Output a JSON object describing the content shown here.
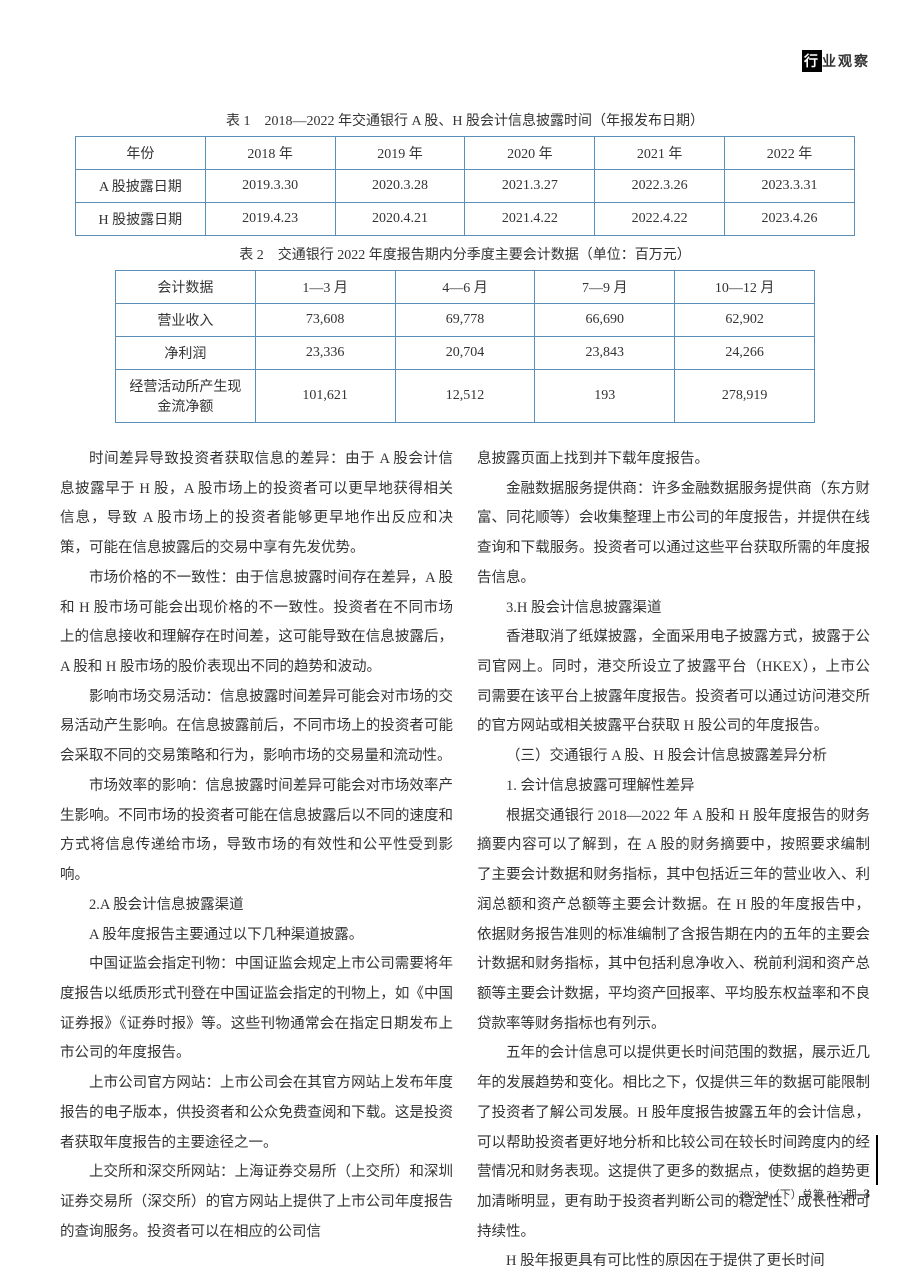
{
  "header": {
    "label_box": "行",
    "label_rest": "业观察"
  },
  "table1": {
    "caption": "表 1　2018—2022 年交通银行 A 股、H 股会计信息披露时间（年报发布日期）",
    "columns": [
      "年份",
      "2018 年",
      "2019 年",
      "2020 年",
      "2021 年",
      "2022 年"
    ],
    "rows": [
      [
        "A 股披露日期",
        "2019.3.30",
        "2020.3.28",
        "2021.3.27",
        "2022.3.26",
        "2023.3.31"
      ],
      [
        "H 股披露日期",
        "2019.4.23",
        "2020.4.21",
        "2021.4.22",
        "2022.4.22",
        "2023.4.26"
      ]
    ]
  },
  "table2": {
    "caption": "表 2　交通银行 2022 年度报告期内分季度主要会计数据（单位：百万元）",
    "columns": [
      "会计数据",
      "1—3 月",
      "4—6 月",
      "7—9 月",
      "10—12 月"
    ],
    "rows": [
      [
        "营业收入",
        "73,608",
        "69,778",
        "66,690",
        "62,902"
      ],
      [
        "净利润",
        "23,336",
        "20,704",
        "23,843",
        "24,266"
      ],
      [
        "经营活动所产生现金流净额",
        "101,621",
        "12,512",
        "193",
        "278,919"
      ]
    ]
  },
  "left": {
    "p1": "时间差异导致投资者获取信息的差异：由于 A 股会计信息披露早于 H 股，A 股市场上的投资者可以更早地获得相关信息，导致 A 股市场上的投资者能够更早地作出反应和决策，可能在信息披露后的交易中享有先发优势。",
    "p2": "市场价格的不一致性：由于信息披露时间存在差异，A 股和 H 股市场可能会出现价格的不一致性。投资者在不同市场上的信息接收和理解存在时间差，这可能导致在信息披露后，A 股和 H 股市场的股价表现出不同的趋势和波动。",
    "p3": "影响市场交易活动：信息披露时间差异可能会对市场的交易活动产生影响。在信息披露前后，不同市场上的投资者可能会采取不同的交易策略和行为，影响市场的交易量和流动性。",
    "p4": "市场效率的影响：信息披露时间差异可能会对市场效率产生影响。不同市场的投资者可能在信息披露后以不同的速度和方式将信息传递给市场，导致市场的有效性和公平性受到影响。",
    "p5": "2.A 股会计信息披露渠道",
    "p6": "A 股年度报告主要通过以下几种渠道披露。",
    "p7": "中国证监会指定刊物：中国证监会规定上市公司需要将年度报告以纸质形式刊登在中国证监会指定的刊物上，如《中国证券报》《证券时报》等。这些刊物通常会在指定日期发布上市公司的年度报告。",
    "p8": "上市公司官方网站：上市公司会在其官方网站上发布年度报告的电子版本，供投资者和公众免费查阅和下载。这是投资者获取年度报告的主要途径之一。",
    "p9": "上交所和深交所网站：上海证券交易所（上交所）和深圳证券交易所（深交所）的官方网站上提供了上市公司年度报告的查询服务。投资者可以在相应的公司信"
  },
  "right": {
    "p1": "息披露页面上找到并下载年度报告。",
    "p2": "金融数据服务提供商：许多金融数据服务提供商（东方财富、同花顺等）会收集整理上市公司的年度报告，并提供在线查询和下载服务。投资者可以通过这些平台获取所需的年度报告信息。",
    "p3": "3.H 股会计信息披露渠道",
    "p4": "香港取消了纸媒披露，全面采用电子披露方式，披露于公司官网上。同时，港交所设立了披露平台（HKEX），上市公司需要在该平台上披露年度报告。投资者可以通过访问港交所的官方网站或相关披露平台获取 H 股公司的年度报告。",
    "p5": "（三）交通银行 A 股、H 股会计信息披露差异分析",
    "p6": "1. 会计信息披露可理解性差异",
    "p7": "根据交通银行 2018—2022 年 A 股和 H 股年度报告的财务摘要内容可以了解到，在 A 股的财务摘要中，按照要求编制了主要会计数据和财务指标，其中包括近三年的营业收入、利润总额和资产总额等主要会计数据。在 H 股的年度报告中，依据财务报告准则的标准编制了含报告期在内的五年的主要会计数据和财务指标，其中包括利息净收入、税前利润和资产总额等主要会计数据，平均资产回报率、平均股东权益率和不良贷款率等财务指标也有列示。",
    "p8": "五年的会计信息可以提供更长时间范围的数据，展示近几年的发展趋势和变化。相比之下，仅提供三年的数据可能限制了投资者了解公司发展。H 股年度报告披露五年的会计信息，可以帮助投资者更好地分析和比较公司在较长时间跨度内的经营情况和财务表现。这提供了更多的数据点，使数据的趋势更加清晰明显，更有助于投资者判断公司的稳定性、成长性和可持续性。",
    "p9": "H 股年报更具有可比性的原因在于提供了更长时间"
  },
  "footer": {
    "issue": "2023.8（下）总第 312 期",
    "page": "3"
  },
  "colors": {
    "border": "#5a8fb8",
    "text": "#333333",
    "bg": "#ffffff"
  }
}
